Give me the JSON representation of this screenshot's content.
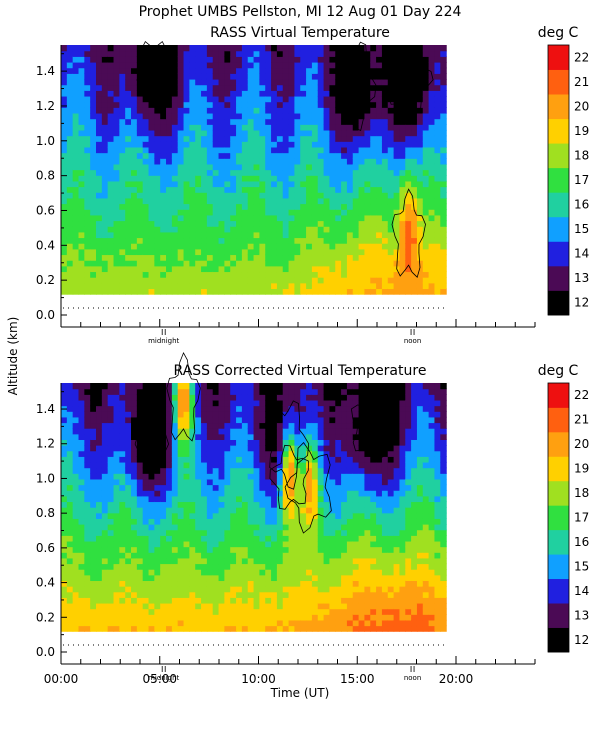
{
  "header": {
    "main_title": "Prophet  UMBS Pellston, MI  12 Aug 01 Day 224",
    "ylabel": "Altitude (km)",
    "xlabel": "Time (UT)"
  },
  "colors": {
    "palette": [
      "#000000",
      "#4b0a55",
      "#2020e0",
      "#10a0ff",
      "#20d0a0",
      "#30e040",
      "#a0e020",
      "#ffd000",
      "#ffa010",
      "#ff6010",
      "#ee1010",
      "#ff40a0"
    ],
    "background": "#ffffff"
  },
  "chart_data": [
    {
      "type": "heatmap",
      "title": "RASS Virtual Temperature",
      "colorbar_label": "deg C",
      "colorbar_ticks": [
        "12",
        "13",
        "14",
        "15",
        "16",
        "17",
        "18",
        "19",
        "20",
        "21",
        "22"
      ],
      "ylabel": "Altitude (km)",
      "y_ticks": [
        "0.0",
        "0.2",
        "0.4",
        "0.6",
        "0.8",
        "1.0",
        "1.2",
        "1.4"
      ],
      "ylim": [
        0,
        1.55
      ],
      "xlim": [
        0,
        24
      ],
      "x_markers": [
        {
          "x": 5.2,
          "label": "midnight"
        },
        {
          "x": 17.8,
          "label": "noon"
        }
      ],
      "data_range": {
        "x": [
          0,
          19.5
        ],
        "y": [
          0.12,
          1.55
        ]
      },
      "profile_surface_temp_degC": 18.8,
      "profile_1_5km_temp_degC": 13.8,
      "cold_core_events": [
        {
          "x": 4.7,
          "y": 1.4,
          "min_temp_degC": 12
        },
        {
          "x": 14.9,
          "y": 1.32,
          "min_temp_degC": 12
        },
        {
          "x": 17.6,
          "y": 1.35,
          "min_temp_degC": 12
        }
      ],
      "warm_events": [
        {
          "x": 17.6,
          "y": 0.45,
          "max_temp_degC": 21.5
        }
      ]
    },
    {
      "type": "heatmap",
      "title": "RASS Corrected Virtual Temperature",
      "colorbar_label": "deg C",
      "colorbar_ticks": [
        "12",
        "13",
        "14",
        "15",
        "16",
        "17",
        "18",
        "19",
        "20",
        "21",
        "22"
      ],
      "ylabel": "Altitude (km)",
      "xlabel": "Time (UT)",
      "y_ticks": [
        "0.0",
        "0.2",
        "0.4",
        "0.6",
        "0.8",
        "1.0",
        "1.2",
        "1.4"
      ],
      "x_ticks": [
        "00:00",
        "05:00",
        "10:00",
        "15:00",
        "20:00"
      ],
      "x_tick_values": [
        0,
        5,
        10,
        15,
        20
      ],
      "ylim": [
        0,
        1.55
      ],
      "xlim": [
        0,
        24
      ],
      "x_markers": [
        {
          "x": 5.2,
          "label": "midnight"
        },
        {
          "x": 17.8,
          "label": "noon"
        }
      ],
      "data_range": {
        "x": [
          0,
          19.5
        ],
        "y": [
          0.12,
          1.55
        ]
      },
      "profile_surface_temp_degC": 20.0,
      "profile_1_5km_temp_degC": 13.5,
      "cold_core_events": [
        {
          "x": 4.6,
          "y": 1.25,
          "min_temp_degC": 12
        },
        {
          "x": 11.5,
          "y": 1.2,
          "min_temp_degC": 12
        },
        {
          "x": 15.8,
          "y": 1.3,
          "min_temp_degC": 12
        }
      ],
      "warm_events": [
        {
          "x": 6.2,
          "y": 1.45,
          "max_temp_degC": 21
        },
        {
          "x": 11.6,
          "y": 1.0,
          "max_temp_degC": 21
        },
        {
          "x": 12.6,
          "y": 0.95,
          "max_temp_degC": 20.5
        }
      ]
    }
  ]
}
